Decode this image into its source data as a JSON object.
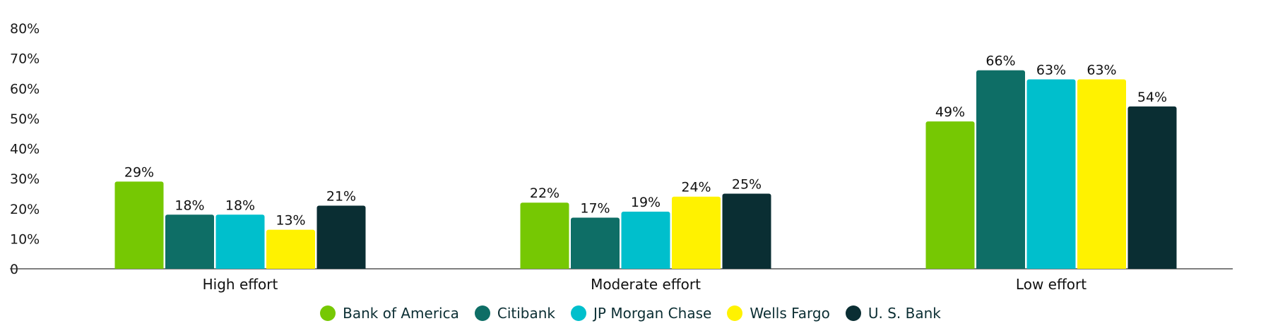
{
  "header": {
    "title_fragment": ""
  },
  "chart_data": {
    "type": "bar",
    "categories": [
      "High effort",
      "Moderate effort",
      "Low effort"
    ],
    "series": [
      {
        "name": "Bank of America",
        "color": "#76c803",
        "values": [
          29,
          22,
          49
        ],
        "labels": [
          "29%",
          "22%",
          "49%"
        ]
      },
      {
        "name": "Citibank",
        "color": "#0e6e66",
        "values": [
          18,
          17,
          66
        ],
        "labels": [
          "18%",
          "17%",
          "66%"
        ]
      },
      {
        "name": "JP Morgan Chase",
        "color": "#00bfcc",
        "values": [
          18,
          19,
          63
        ],
        "labels": [
          "18%",
          "19%",
          "63%"
        ]
      },
      {
        "name": "Wells Fargo",
        "color": "#fff200",
        "values": [
          13,
          24,
          63
        ],
        "labels": [
          "13%",
          "24%",
          "63%"
        ]
      },
      {
        "name": "U. S. Bank",
        "color": "#0a2e33",
        "values": [
          21,
          25,
          54
        ],
        "labels": [
          "21%",
          "25%",
          "54%"
        ]
      }
    ],
    "yticks": [
      "0",
      "10%",
      "20%",
      "30%",
      "40%",
      "50%",
      "60%",
      "70%",
      "80%"
    ],
    "ylim": [
      0,
      80
    ],
    "grid": false,
    "legend_position": "bottom",
    "xlabel": "",
    "ylabel": ""
  }
}
